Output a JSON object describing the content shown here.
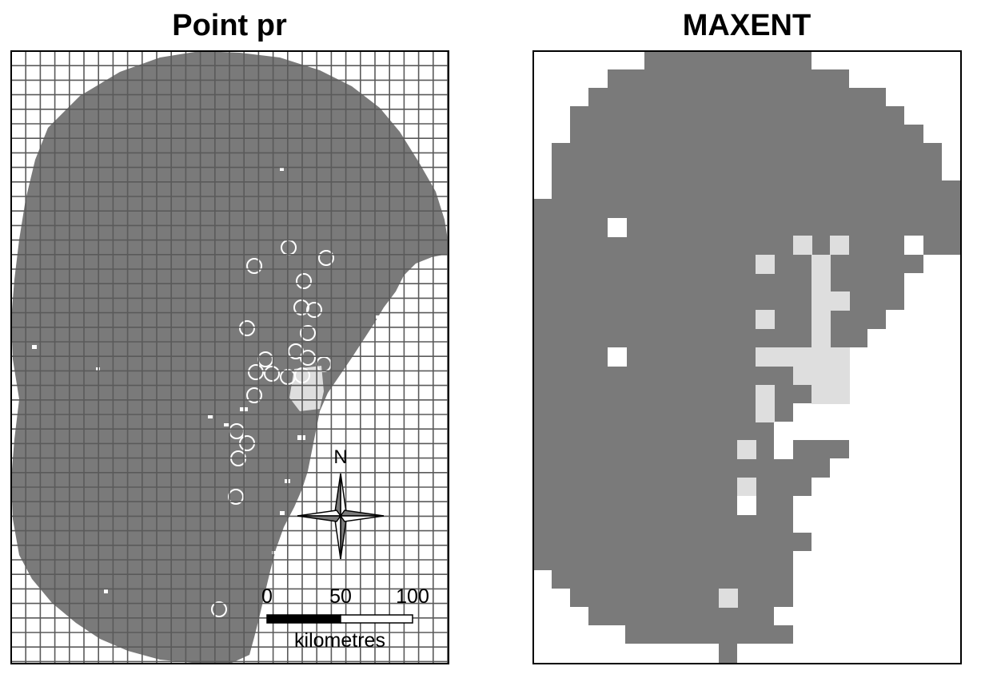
{
  "panels": {
    "left": {
      "title": "Point pr"
    },
    "right": {
      "title": "MAXENT"
    }
  },
  "scalebar": {
    "ticks": [
      "0",
      "50",
      "100"
    ],
    "unit": "kilometres"
  },
  "north_arrow": {
    "label": "N"
  },
  "colors": {
    "land": "#7a7a7a",
    "highlight": "#dedede",
    "background": "#ffffff",
    "gridline": "#5a5a5a"
  }
}
